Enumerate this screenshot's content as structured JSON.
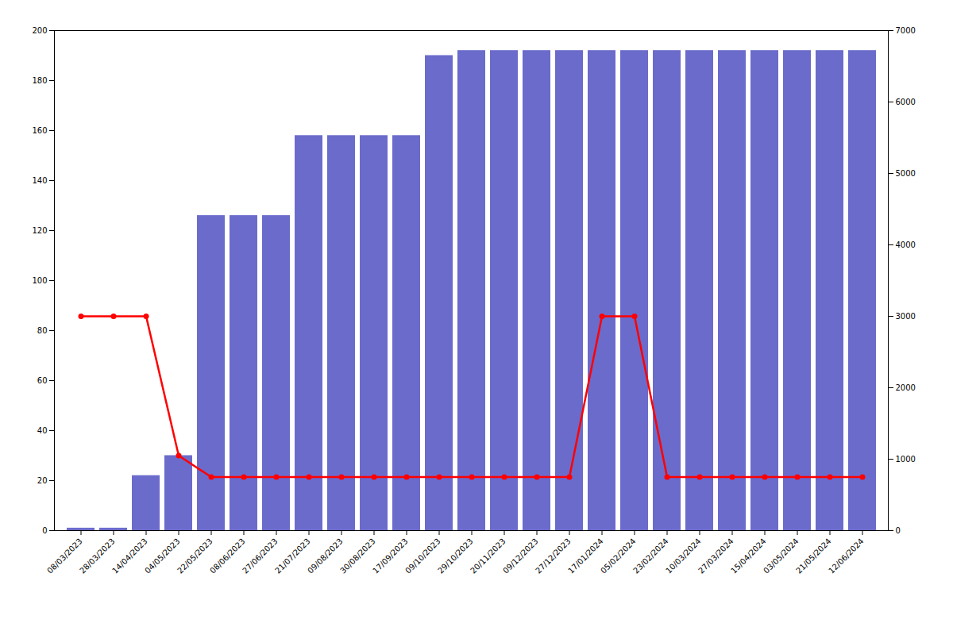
{
  "chart_data": {
    "type": "bar",
    "categories": [
      "08/03/2023",
      "28/03/2023",
      "14/04/2023",
      "04/05/2023",
      "22/05/2023",
      "08/06/2023",
      "27/06/2023",
      "21/07/2023",
      "09/08/2023",
      "30/08/2023",
      "17/09/2023",
      "09/10/2023",
      "29/10/2023",
      "20/11/2023",
      "09/12/2023",
      "27/12/2023",
      "17/01/2024",
      "05/02/2024",
      "23/02/2024",
      "10/03/2024",
      "27/03/2024",
      "15/04/2024",
      "03/05/2024",
      "21/05/2024",
      "12/06/2024"
    ],
    "series": [
      {
        "type": "bar",
        "color": "#6b6bcc",
        "values": [
          1,
          1,
          22,
          30,
          126,
          126,
          126,
          158,
          158,
          158,
          158,
          190,
          192,
          192,
          192,
          192,
          192,
          192,
          192,
          192,
          192,
          192,
          192,
          192,
          192
        ]
      },
      {
        "type": "line",
        "color": "#ff0000",
        "marker": "circle",
        "axis": "y2",
        "values": [
          3000,
          3000,
          3000,
          1050,
          750,
          750,
          750,
          750,
          750,
          750,
          750,
          750,
          750,
          750,
          750,
          750,
          3000,
          3000,
          750,
          750,
          750,
          750,
          750,
          750,
          750
        ]
      }
    ],
    "ylim": [
      0,
      200
    ],
    "yticks": [
      0,
      20,
      40,
      60,
      80,
      100,
      120,
      140,
      160,
      180,
      200
    ],
    "y2lim": [
      0,
      7000
    ],
    "y2ticks": [
      0,
      1000,
      2000,
      3000,
      4000,
      5000,
      6000,
      7000
    ],
    "grid": false
  }
}
